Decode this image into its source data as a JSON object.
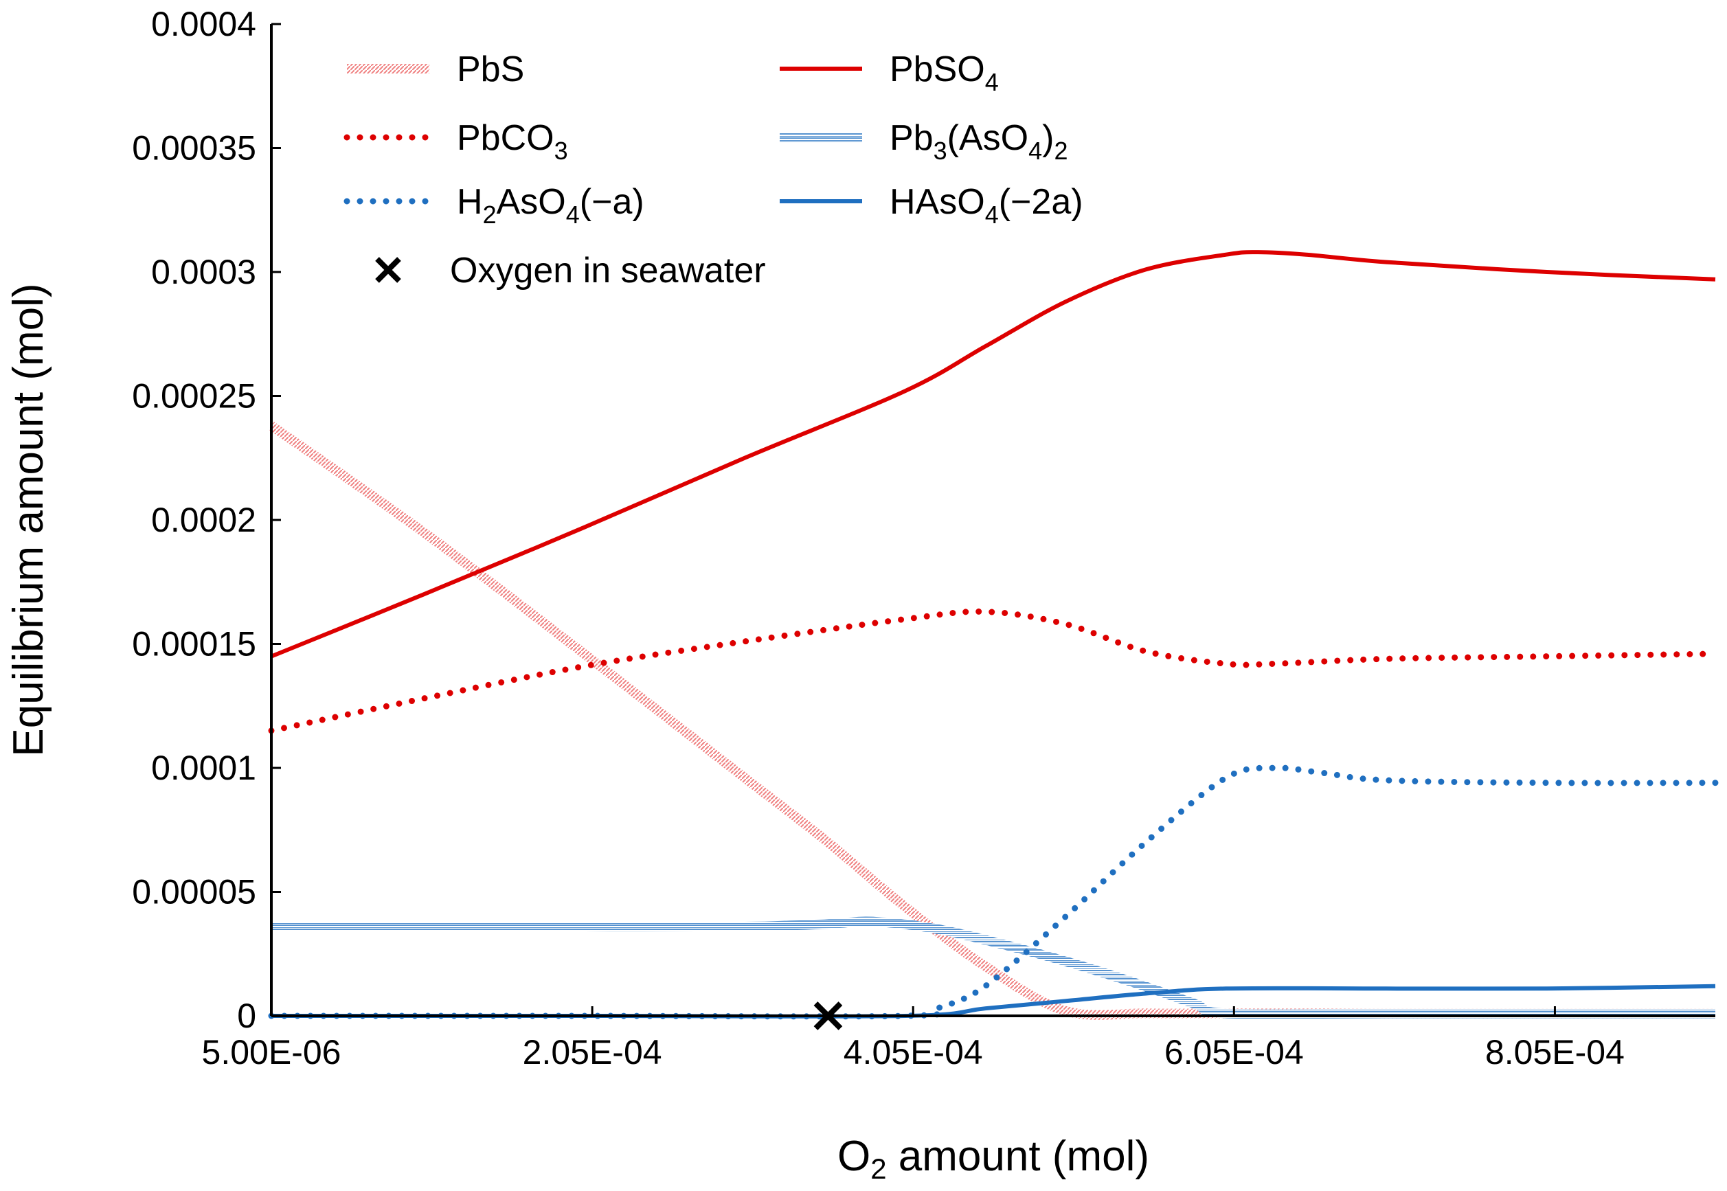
{
  "chart_data": {
    "type": "line",
    "title": "",
    "xlabel": "O2 amount (mol)",
    "xlabel_parts": {
      "main": "O",
      "sub": "2",
      "rest": " amount (mol)"
    },
    "ylabel": "Equilibrium amount (mol)",
    "xlim": [
      5e-06,
      0.000905
    ],
    "ylim": [
      0,
      0.0004
    ],
    "xticks": [
      5e-06,
      0.000205,
      0.000405,
      0.000605,
      0.000805
    ],
    "xtick_labels": [
      "5.00E-06",
      "2.05E-04",
      "4.05E-04",
      "6.05E-04",
      "8.05E-04"
    ],
    "yticks": [
      0,
      5e-05,
      0.0001,
      0.00015,
      0.0002,
      0.00025,
      0.0003,
      0.00035,
      0.0004
    ],
    "ytick_labels": [
      "0",
      "0.00005",
      "0.0001",
      "0.00015",
      "0.0002",
      "0.00025",
      "0.0003",
      "0.00035",
      "0.0004"
    ],
    "legend_position": "top-left",
    "series": [
      {
        "name": "PbS",
        "label_parts": [
          [
            "PbS",
            ""
          ]
        ],
        "color": "#f08080",
        "style": "hatched",
        "x": [
          5e-06,
          0.0001,
          0.0002,
          0.0003,
          0.00035,
          0.0004,
          0.00045,
          0.0005,
          0.00055,
          0.0006,
          0.0007,
          0.0008,
          0.000905
        ],
        "y": [
          0.000238,
          0.000195,
          0.000146,
          9.6e-05,
          7.1e-05,
          4.4e-05,
          2e-05,
          2e-06,
          1e-06,
          1e-06,
          1e-06,
          1e-06,
          1e-06
        ]
      },
      {
        "name": "PbSO4",
        "label_parts": [
          [
            "PbSO",
            ""
          ],
          [
            "4",
            "sub"
          ]
        ],
        "color": "#dd0000",
        "style": "solid",
        "x": [
          5e-06,
          0.0001,
          0.0002,
          0.0003,
          0.0004,
          0.00045,
          0.0005,
          0.00055,
          0.0006,
          0.00062,
          0.00065,
          0.0007,
          0.0008,
          0.000905
        ],
        "y": [
          0.000145,
          0.00017,
          0.000197,
          0.000225,
          0.000252,
          0.00027,
          0.000288,
          0.000301,
          0.000307,
          0.000308,
          0.000307,
          0.000304,
          0.0003,
          0.000297
        ]
      },
      {
        "name": "PbCO3",
        "label_parts": [
          [
            "PbCO",
            ""
          ],
          [
            "3",
            "sub"
          ]
        ],
        "color": "#dd0000",
        "style": "dotted",
        "x": [
          5e-06,
          0.0001,
          0.0002,
          0.0003,
          0.0004,
          0.00045,
          0.0005,
          0.00055,
          0.0006,
          0.00063,
          0.0007,
          0.0008,
          0.000905
        ],
        "y": [
          0.000115,
          0.000128,
          0.000141,
          0.000151,
          0.00016,
          0.000163,
          0.000158,
          0.000147,
          0.000142,
          0.000142,
          0.000144,
          0.000145,
          0.000146
        ]
      },
      {
        "name": "Pb3(AsO4)2",
        "label_parts": [
          [
            "Pb",
            ""
          ],
          [
            "3",
            "sub"
          ],
          [
            "(AsO",
            ""
          ],
          [
            "4",
            "sub"
          ],
          [
            ")",
            ""
          ],
          [
            "2",
            "sub"
          ]
        ],
        "color": "#1f6fc0",
        "style": "hatched",
        "x": [
          5e-06,
          0.0001,
          0.0002,
          0.0003,
          0.00035,
          0.00038,
          0.00042,
          0.00046,
          0.0005,
          0.00054,
          0.00058,
          0.0006,
          0.0007,
          0.0008,
          0.000905
        ],
        "y": [
          3.6e-05,
          3.6e-05,
          3.6e-05,
          3.6e-05,
          3.7e-05,
          3.8e-05,
          3.5e-05,
          2.9e-05,
          2.2e-05,
          1.4e-05,
          5e-06,
          1e-06,
          1e-06,
          1e-06,
          1e-06
        ]
      },
      {
        "name": "H2AsO4(-a)",
        "label_parts": [
          [
            "H",
            ""
          ],
          [
            "2",
            "sub"
          ],
          [
            "AsO",
            ""
          ],
          [
            "4",
            "sub"
          ],
          [
            "(−a)",
            ""
          ]
        ],
        "color": "#1f6fc0",
        "style": "dotted",
        "x": [
          5e-06,
          0.0002,
          0.0004,
          0.00042,
          0.00045,
          0.0005,
          0.00055,
          0.0006,
          0.00063,
          0.00066,
          0.0007,
          0.0008,
          0.000905
        ],
        "y": [
          0,
          0,
          0,
          3e-06,
          1.2e-05,
          4e-05,
          7e-05,
          9.6e-05,
          0.0001,
          9.8e-05,
          9.5e-05,
          9.4e-05,
          9.4e-05
        ]
      },
      {
        "name": "HAsO4(-2a)",
        "label_parts": [
          [
            "HAsO",
            ""
          ],
          [
            "4",
            "sub"
          ],
          [
            "(−2a)",
            ""
          ]
        ],
        "color": "#1f6fc0",
        "style": "solid",
        "x": [
          5e-06,
          0.0002,
          0.0004,
          0.00045,
          0.0005,
          0.00055,
          0.0006,
          0.0007,
          0.0008,
          0.000905
        ],
        "y": [
          0,
          0,
          0,
          3e-06,
          6e-06,
          9e-06,
          1.1e-05,
          1.1e-05,
          1.1e-05,
          1.2e-05
        ]
      }
    ],
    "markers": [
      {
        "name": "Oxygen in seawater",
        "x": 0.000352,
        "y": 0,
        "symbol": "x",
        "color": "#000000"
      }
    ]
  }
}
